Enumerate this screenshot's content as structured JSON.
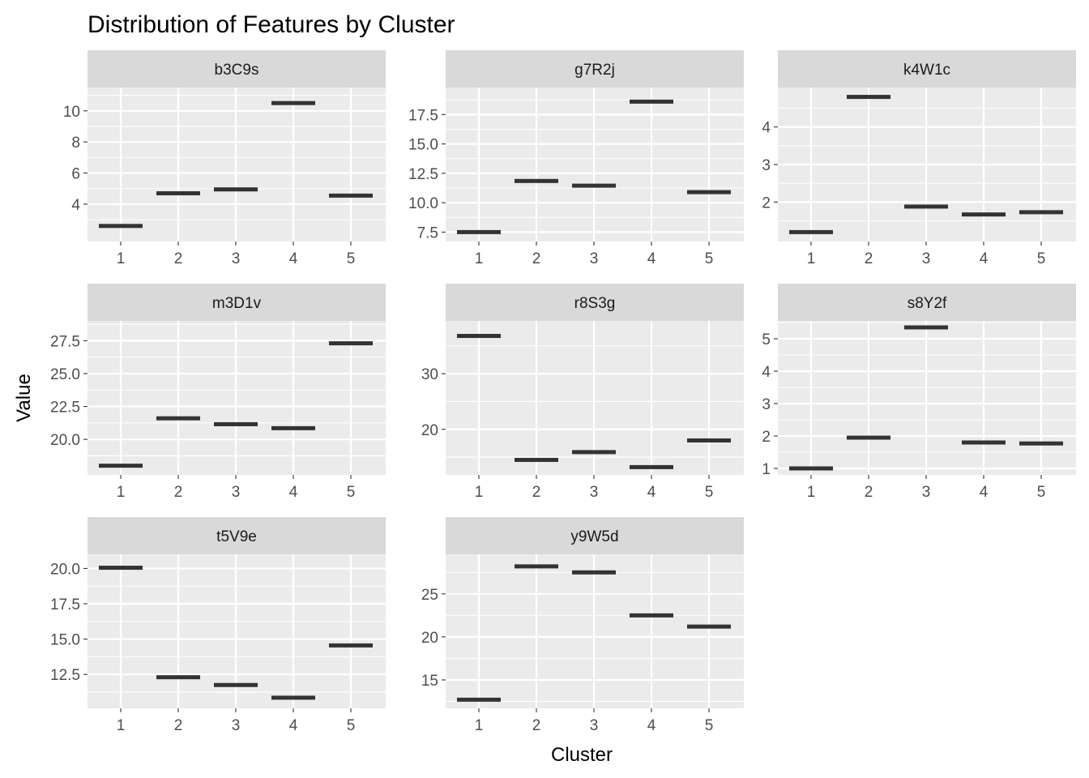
{
  "chart_data": {
    "type": "crossbar",
    "title": "Distribution of Features by Cluster",
    "xlabel": "Cluster",
    "ylabel": "Value",
    "categories": [
      "1",
      "2",
      "3",
      "4",
      "5"
    ],
    "layout": "facet-wrap 3 columns, independent y scales",
    "grid": true,
    "colors": {
      "panel": "#EBEBEB",
      "strip": "#D9D9D9",
      "mark": "#333333",
      "grid": "#FFFFFF"
    },
    "panels": [
      {
        "name": "b3C9s",
        "ylim": [
          1.6,
          11.5
        ],
        "yticks": [
          4,
          6,
          8,
          10
        ],
        "yticklabels": [
          "4",
          "6",
          "8",
          "10"
        ],
        "values": [
          2.6,
          4.7,
          4.95,
          10.5,
          4.55
        ]
      },
      {
        "name": "g7R2j",
        "ylim": [
          6.7,
          19.8
        ],
        "yticks": [
          7.5,
          10,
          12.5,
          15,
          17.5
        ],
        "yticklabels": [
          "7.5",
          "10.0",
          "12.5",
          "15.0",
          "17.5"
        ],
        "values": [
          7.5,
          11.85,
          11.45,
          18.6,
          10.9
        ]
      },
      {
        "name": "k4W1c",
        "ylim": [
          0.95,
          5.05
        ],
        "yticks": [
          2,
          3,
          4
        ],
        "yticklabels": [
          "2",
          "3",
          "4"
        ],
        "values": [
          1.2,
          4.8,
          1.88,
          1.67,
          1.73
        ]
      },
      {
        "name": "m3D1v",
        "ylim": [
          17.3,
          29.0
        ],
        "yticks": [
          20,
          22.5,
          25,
          27.5
        ],
        "yticklabels": [
          "20.0",
          "22.5",
          "25.0",
          "27.5"
        ],
        "values": [
          18.0,
          21.6,
          21.15,
          20.85,
          27.3
        ]
      },
      {
        "name": "r8S3g",
        "ylim": [
          11.8,
          39.5
        ],
        "yticks": [
          20,
          30
        ],
        "yticklabels": [
          "20",
          "30"
        ],
        "values": [
          36.8,
          14.5,
          15.9,
          13.2,
          18.0
        ]
      },
      {
        "name": "s8Y2f",
        "ylim": [
          0.8,
          5.55
        ],
        "yticks": [
          1,
          2,
          3,
          4,
          5
        ],
        "yticklabels": [
          "1",
          "2",
          "3",
          "4",
          "5"
        ],
        "values": [
          1.0,
          1.95,
          5.35,
          1.8,
          1.77
        ]
      },
      {
        "name": "t5V9e",
        "ylim": [
          10.1,
          21.0
        ],
        "yticks": [
          12.5,
          15,
          17.5,
          20
        ],
        "yticklabels": [
          "12.5",
          "15.0",
          "17.5",
          "20.0"
        ],
        "values": [
          20.05,
          12.3,
          11.75,
          10.85,
          14.55
        ]
      },
      {
        "name": "y9W5d",
        "ylim": [
          11.7,
          29.6
        ],
        "yticks": [
          15,
          20,
          25
        ],
        "yticklabels": [
          "15",
          "20",
          "25"
        ],
        "values": [
          12.7,
          28.2,
          27.5,
          22.5,
          21.2
        ]
      }
    ]
  }
}
